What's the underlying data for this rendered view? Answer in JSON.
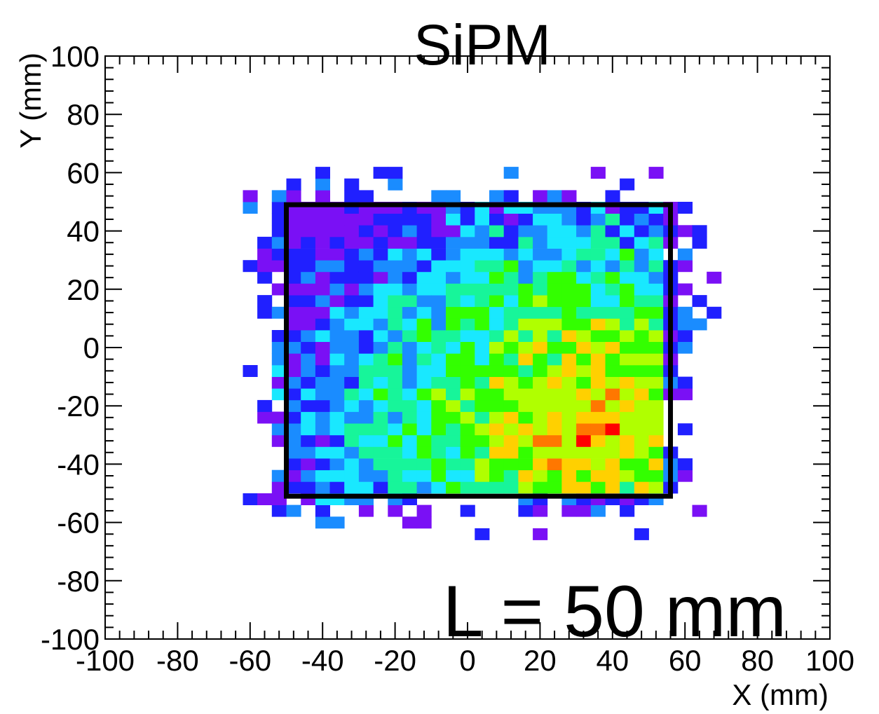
{
  "chart_data": {
    "type": "heatmap",
    "title": "SiPM",
    "xlabel": "X (mm)",
    "ylabel": "Y (mm)",
    "annotation": "L = 50 mm",
    "xlim": [
      -100,
      100
    ],
    "ylim": [
      -100,
      100
    ],
    "x_ticks": [
      "-100",
      "-80",
      "-60",
      "-40",
      "-20",
      "0",
      "20",
      "40",
      "60",
      "80",
      "100"
    ],
    "y_ticks": [
      "-100",
      "-80",
      "-60",
      "-40",
      "-20",
      "0",
      "20",
      "40",
      "60",
      "80",
      "100"
    ],
    "grid": false,
    "bin_size_mm": 4,
    "colormap": [
      "#7a10f5",
      "#2020ff",
      "#1a8cff",
      "#19e8ff",
      "#17f59a",
      "#33ff00",
      "#b0ff00",
      "#ffd000",
      "#ff7700",
      "#ff0000"
    ],
    "fiducial_box": {
      "x": [
        -50,
        56
      ],
      "y": [
        -51,
        49
      ]
    },
    "cloud_extent": {
      "x": [
        -70,
        70
      ],
      "y": [
        -70,
        70
      ]
    },
    "hotspot_center": [
      33,
      -25
    ],
    "colors": {
      "frame": "#000000",
      "box": "#000000",
      "background": "#ffffff"
    }
  }
}
